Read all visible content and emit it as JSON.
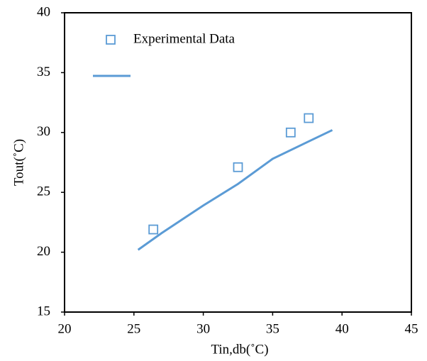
{
  "chart_data": {
    "type": "scatter",
    "xlabel": "Tin,db(˚C)",
    "ylabel": "Tout(˚C)",
    "xlim": [
      20,
      45
    ],
    "xticks": [
      20,
      25,
      30,
      35,
      40,
      45
    ],
    "ylim": [
      15,
      40
    ],
    "yticks": [
      15,
      20,
      25,
      30,
      35,
      40
    ],
    "grid": false,
    "legend": "upper left",
    "series": [
      {
        "name": "Experimental Data",
        "type": "scatter",
        "color": "#5b9bd5",
        "x": [
          26.4,
          32.5,
          36.3,
          37.6
        ],
        "values": [
          21.9,
          27.1,
          30.0,
          31.2
        ]
      },
      {
        "type": "line",
        "color": "#5b9bd5",
        "x": [
          25.3,
          27,
          30,
          32.5,
          35,
          37.5,
          39.3
        ],
        "values": [
          20.2,
          21.6,
          23.9,
          25.7,
          27.8,
          29.2,
          30.2
        ]
      }
    ]
  }
}
